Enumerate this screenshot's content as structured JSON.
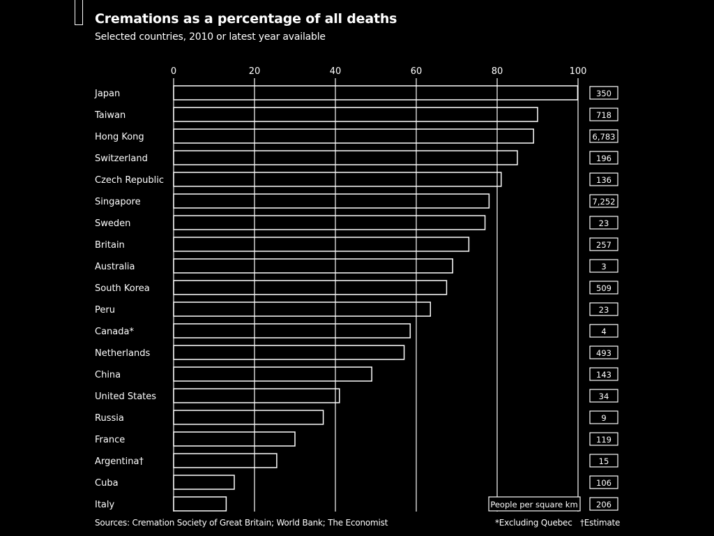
{
  "title": "Cremations as a percentage of all deaths",
  "subtitle": "Selected countries, 2010 or latest year available",
  "density_label": "People per square km",
  "footer": {
    "source": "Sources: Cremation Society of Great Britain; World Bank; The Economist",
    "footnote_1": "*Excluding Quebec",
    "footnote_2": "†Estimate"
  },
  "colors": {
    "background": "#000000",
    "foreground": "#ffffff"
  },
  "chart_data": {
    "type": "bar",
    "orientation": "horizontal",
    "title": "Cremations as a percentage of all deaths",
    "subtitle": "Selected countries, 2010 or latest year available",
    "xlim": [
      0,
      100
    ],
    "xticks": [
      0,
      20,
      40,
      60,
      80,
      100
    ],
    "grid": true,
    "categories": [
      "Japan",
      "Taiwan",
      "Hong Kong",
      "Switzerland",
      "Czech Republic",
      "Singapore",
      "Sweden",
      "Britain",
      "Australia",
      "South Korea",
      "Peru",
      "Canada*",
      "Netherlands",
      "China",
      "United States",
      "Russia",
      "France",
      "Argentina†",
      "Cuba",
      "Italy"
    ],
    "values": [
      99.9,
      90,
      89,
      85,
      81,
      78,
      77,
      73,
      69,
      67.5,
      63.5,
      58.5,
      57,
      49,
      41,
      37,
      30,
      25.5,
      15,
      13
    ],
    "side_values_label": "People per square km",
    "side_values": [
      "350",
      "718",
      "6,783",
      "196",
      "136",
      "7,252",
      "23",
      "257",
      "3",
      "509",
      "23",
      "4",
      "493",
      "143",
      "34",
      "9",
      "119",
      "15",
      "106",
      "206"
    ]
  }
}
